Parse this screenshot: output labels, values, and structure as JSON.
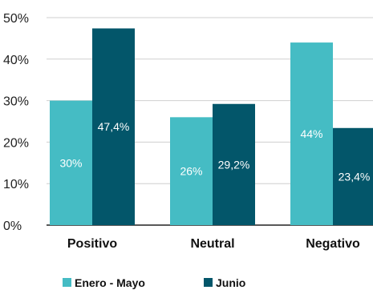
{
  "chart_data": {
    "type": "bar",
    "categories": [
      "Positivo",
      "Neutral",
      "Negativo"
    ],
    "series": [
      {
        "name": "Enero - Mayo",
        "values": [
          30,
          26,
          44
        ],
        "labels": [
          "30%",
          "26%",
          "44%"
        ],
        "color": "#45bcc4"
      },
      {
        "name": "Junio",
        "values": [
          47.4,
          29.2,
          23.4
        ],
        "labels": [
          "47,4%",
          "29,2%",
          "23,4%"
        ],
        "color": "#03566a"
      }
    ],
    "yticks": [
      "0%",
      "10%",
      "20%",
      "30%",
      "40%",
      "50%"
    ],
    "ylim": [
      0,
      50
    ],
    "grid": true,
    "legend": "bottom",
    "axis_color": "#222222",
    "grid_color": "#cfcfcf"
  }
}
